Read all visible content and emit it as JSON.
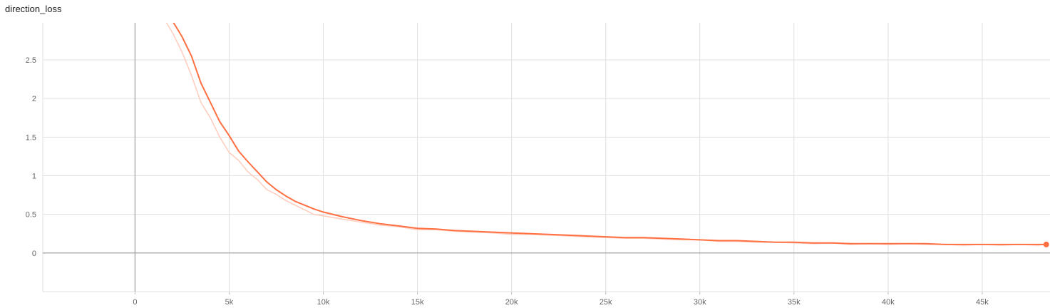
{
  "chart_data": {
    "type": "line",
    "title": "direction_loss",
    "xlabel": "",
    "ylabel": "",
    "xlim": [
      -4900,
      48600
    ],
    "ylim": [
      -0.5,
      2.98
    ],
    "x_ticks": [
      0,
      5000,
      10000,
      15000,
      20000,
      25000,
      30000,
      35000,
      40000,
      45000
    ],
    "x_tick_labels": [
      "0",
      "5k",
      "10k",
      "15k",
      "20k",
      "25k",
      "30k",
      "35k",
      "40k",
      "45k"
    ],
    "y_ticks": [
      0,
      0.5,
      1,
      1.5,
      2,
      2.5
    ],
    "y_tick_labels": [
      "0",
      "0.5",
      "1",
      "1.5",
      "2",
      "2.5"
    ],
    "grid": true,
    "legend": "none",
    "series": [
      {
        "role": "smoothed",
        "color": "#ff7043",
        "x": [
          1500,
          2000,
          2500,
          3000,
          3500,
          4000,
          4500,
          5000,
          5500,
          6000,
          6500,
          7000,
          7500,
          8000,
          8500,
          9000,
          9500,
          10000,
          11000,
          12000,
          13000,
          14000,
          15000,
          16000,
          17000,
          18000,
          19000,
          20000,
          21000,
          22000,
          23000,
          24000,
          25000,
          26000,
          27000,
          28000,
          29000,
          30000,
          31000,
          32000,
          33000,
          34000,
          35000,
          36000,
          37000,
          38000,
          39000,
          40000,
          41000,
          42000,
          43000,
          44000,
          45000,
          46000,
          47000,
          48000,
          48400
        ],
        "y": [
          3.1,
          3.0,
          2.8,
          2.55,
          2.2,
          1.95,
          1.7,
          1.52,
          1.32,
          1.18,
          1.05,
          0.92,
          0.82,
          0.74,
          0.67,
          0.62,
          0.57,
          0.53,
          0.47,
          0.42,
          0.38,
          0.35,
          0.32,
          0.31,
          0.29,
          0.28,
          0.27,
          0.26,
          0.25,
          0.24,
          0.23,
          0.22,
          0.21,
          0.2,
          0.2,
          0.19,
          0.18,
          0.17,
          0.16,
          0.16,
          0.15,
          0.14,
          0.14,
          0.13,
          0.13,
          0.12,
          0.12,
          0.12,
          0.12,
          0.12,
          0.11,
          0.11,
          0.11,
          0.11,
          0.11,
          0.11,
          0.11
        ]
      },
      {
        "role": "raw",
        "color": "#ffccbc",
        "x": [
          1500,
          2000,
          2500,
          3000,
          3500,
          4000,
          4500,
          5000,
          5500,
          6000,
          6500,
          7000,
          7500,
          8000,
          8500,
          9000,
          9500,
          10000,
          11000,
          12000,
          13000,
          14000,
          15000,
          16000,
          17000,
          18000,
          19000,
          20000,
          21000,
          22000,
          23000,
          24000,
          25000,
          26000,
          27000,
          28000,
          29000,
          30000,
          31000,
          32000,
          33000,
          34000,
          35000,
          36000,
          37000,
          38000,
          39000,
          40000,
          41000,
          42000,
          43000,
          44000,
          45000,
          46000,
          47000,
          48000,
          48400
        ],
        "y": [
          3.05,
          2.85,
          2.6,
          2.3,
          1.95,
          1.75,
          1.5,
          1.3,
          1.2,
          1.05,
          0.95,
          0.82,
          0.76,
          0.68,
          0.62,
          0.56,
          0.5,
          0.48,
          0.44,
          0.4,
          0.36,
          0.34,
          0.3,
          0.3,
          0.28,
          0.27,
          0.26,
          0.24,
          0.24,
          0.23,
          0.22,
          0.21,
          0.2,
          0.19,
          0.19,
          0.18,
          0.17,
          0.17,
          0.15,
          0.15,
          0.14,
          0.14,
          0.13,
          0.12,
          0.13,
          0.11,
          0.12,
          0.11,
          0.12,
          0.11,
          0.11,
          0.1,
          0.11,
          0.1,
          0.11,
          0.1,
          0.12
        ]
      }
    ]
  }
}
